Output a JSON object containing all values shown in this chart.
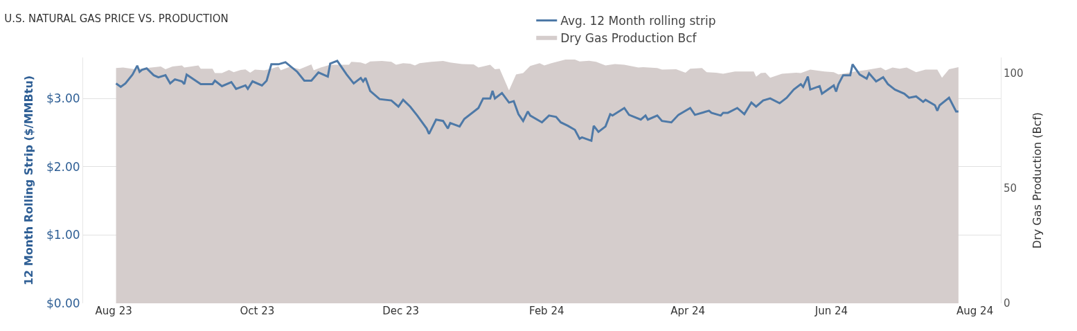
{
  "chart_data": {
    "type": "line",
    "title": "U.S. NATURAL GAS PRICE VS. PRODUCTION",
    "ylabel": "12 Month Rolling Strip ($/MMBtu)",
    "y2label": "Dry Gas Production (Bcf)",
    "xlim": [
      "2023-07-19",
      "2024-08-12"
    ],
    "xticks": [
      {
        "value": "2023-08-01",
        "label": "Aug 23"
      },
      {
        "value": "2023-10-01",
        "label": "Oct 23"
      },
      {
        "value": "2023-12-01",
        "label": "Dec 23"
      },
      {
        "value": "2024-02-01",
        "label": "Feb 24"
      },
      {
        "value": "2024-04-01",
        "label": "Apr 24"
      },
      {
        "value": "2024-06-01",
        "label": "Jun 24"
      },
      {
        "value": "2024-08-01",
        "label": "Aug 24"
      }
    ],
    "ylim": [
      0,
      3.6
    ],
    "yticks": [
      {
        "value": 0,
        "label": "$0.00"
      },
      {
        "value": 1,
        "label": "$1.00"
      },
      {
        "value": 2,
        "label": "$2.00"
      },
      {
        "value": 3,
        "label": "$3.00"
      }
    ],
    "y2lim": [
      0,
      107
    ],
    "y2ticks": [
      0,
      50,
      100
    ],
    "grid": "y",
    "legend": "top",
    "line_style": "solid",
    "series": [
      {
        "name": "Avg. 12 Month rolling strip",
        "color": "#4e79a7",
        "x": [
          "2023-08-02",
          "2023-08-04",
          "2023-08-06",
          "2023-08-09",
          "2023-08-11",
          "2023-08-12",
          "2023-08-13",
          "2023-08-15",
          "2023-08-18",
          "2023-08-20",
          "2023-08-23",
          "2023-08-25",
          "2023-08-27",
          "2023-08-30",
          "2023-08-31",
          "2023-09-01",
          "2023-09-07",
          "2023-09-12",
          "2023-09-13",
          "2023-09-16",
          "2023-09-20",
          "2023-09-22",
          "2023-09-26",
          "2023-09-27",
          "2023-09-29",
          "2023-10-03",
          "2023-10-05",
          "2023-10-07",
          "2023-10-10",
          "2023-10-13",
          "2023-10-18",
          "2023-10-21",
          "2023-10-24",
          "2023-10-27",
          "2023-10-31",
          "2023-11-01",
          "2023-11-04",
          "2023-11-08",
          "2023-11-11",
          "2023-11-14",
          "2023-11-15",
          "2023-11-16",
          "2023-11-18",
          "2023-11-22",
          "2023-11-27",
          "2023-11-30",
          "2023-12-02",
          "2023-12-05",
          "2023-12-08",
          "2023-12-12",
          "2023-12-13",
          "2023-12-16",
          "2023-12-19",
          "2023-12-21",
          "2023-12-22",
          "2023-12-26",
          "2023-12-28",
          "2024-01-03",
          "2024-01-05",
          "2024-01-08",
          "2024-01-09",
          "2024-01-10",
          "2024-01-13",
          "2024-01-16",
          "2024-01-18",
          "2024-01-20",
          "2024-01-22",
          "2024-01-24",
          "2024-01-25",
          "2024-01-30",
          "2024-02-02",
          "2024-02-05",
          "2024-02-07",
          "2024-02-10",
          "2024-02-13",
          "2024-02-15",
          "2024-02-16",
          "2024-02-20",
          "2024-02-21",
          "2024-02-23",
          "2024-02-26",
          "2024-02-28",
          "2024-02-29",
          "2024-03-05",
          "2024-03-07",
          "2024-03-12",
          "2024-03-14",
          "2024-03-15",
          "2024-03-19",
          "2024-03-21",
          "2024-03-25",
          "2024-03-28",
          "2024-04-02",
          "2024-04-04",
          "2024-04-10",
          "2024-04-11",
          "2024-04-15",
          "2024-04-16",
          "2024-04-18",
          "2024-04-22",
          "2024-04-24",
          "2024-04-25",
          "2024-04-28",
          "2024-04-30",
          "2024-05-03",
          "2024-05-06",
          "2024-05-10",
          "2024-05-13",
          "2024-05-16",
          "2024-05-19",
          "2024-05-20",
          "2024-05-22",
          "2024-05-23",
          "2024-05-27",
          "2024-05-28",
          "2024-06-02",
          "2024-06-03",
          "2024-06-04",
          "2024-06-06",
          "2024-06-09",
          "2024-06-10",
          "2024-06-13",
          "2024-06-16",
          "2024-06-17",
          "2024-06-20",
          "2024-06-23",
          "2024-06-25",
          "2024-06-28",
          "2024-07-02",
          "2024-07-04",
          "2024-07-07",
          "2024-07-10",
          "2024-07-11",
          "2024-07-15",
          "2024-07-16",
          "2024-07-17",
          "2024-07-21",
          "2024-07-24",
          "2024-07-25"
        ],
        "values": [
          3.22,
          3.17,
          3.22,
          3.35,
          3.48,
          3.39,
          3.42,
          3.44,
          3.34,
          3.31,
          3.34,
          3.22,
          3.28,
          3.25,
          3.21,
          3.35,
          3.21,
          3.21,
          3.26,
          3.18,
          3.24,
          3.14,
          3.19,
          3.14,
          3.25,
          3.19,
          3.26,
          3.5,
          3.5,
          3.53,
          3.39,
          3.26,
          3.26,
          3.38,
          3.32,
          3.51,
          3.55,
          3.35,
          3.22,
          3.3,
          3.25,
          3.3,
          3.11,
          2.99,
          2.97,
          2.88,
          2.98,
          2.88,
          2.75,
          2.56,
          2.48,
          2.69,
          2.67,
          2.56,
          2.64,
          2.59,
          2.7,
          2.86,
          3.0,
          3.0,
          3.11,
          3.0,
          3.08,
          2.94,
          2.96,
          2.77,
          2.67,
          2.81,
          2.75,
          2.65,
          2.75,
          2.73,
          2.65,
          2.6,
          2.54,
          2.41,
          2.43,
          2.38,
          2.6,
          2.51,
          2.59,
          2.77,
          2.75,
          2.86,
          2.76,
          2.69,
          2.75,
          2.69,
          2.75,
          2.67,
          2.65,
          2.76,
          2.86,
          2.76,
          2.82,
          2.79,
          2.75,
          2.79,
          2.79,
          2.86,
          2.8,
          2.77,
          2.94,
          2.88,
          2.97,
          3.0,
          2.93,
          3.01,
          3.13,
          3.21,
          3.17,
          3.32,
          3.13,
          3.18,
          3.07,
          3.19,
          3.1,
          3.21,
          3.34,
          3.34,
          3.5,
          3.35,
          3.29,
          3.37,
          3.25,
          3.31,
          3.21,
          3.13,
          3.07,
          3.01,
          3.03,
          2.95,
          2.98,
          2.9,
          2.82,
          2.9,
          3.01,
          2.81,
          2.81
        ]
      },
      {
        "name": "Dry Gas Production Bcf",
        "type": "area",
        "axis": "y2",
        "color": "#d5cdcc",
        "x": [
          "2023-08-02",
          "2023-08-05",
          "2023-08-10",
          "2023-08-17",
          "2023-08-21",
          "2023-08-23",
          "2023-08-26",
          "2023-08-30",
          "2023-08-31",
          "2023-09-06",
          "2023-09-07",
          "2023-09-12",
          "2023-09-13",
          "2023-09-16",
          "2023-09-19",
          "2023-09-21",
          "2023-09-24",
          "2023-09-26",
          "2023-09-28",
          "2023-09-30",
          "2023-10-04",
          "2023-10-07",
          "2023-10-10",
          "2023-10-11",
          "2023-10-15",
          "2023-10-19",
          "2023-10-24",
          "2023-10-25",
          "2023-10-28",
          "2023-11-01",
          "2023-11-09",
          "2023-11-10",
          "2023-11-14",
          "2023-11-16",
          "2023-11-18",
          "2023-11-23",
          "2023-11-27",
          "2023-11-29",
          "2023-12-02",
          "2023-12-05",
          "2023-12-07",
          "2023-12-09",
          "2023-12-14",
          "2023-12-19",
          "2023-12-22",
          "2023-12-27",
          "2024-01-01",
          "2024-01-03",
          "2024-01-08",
          "2024-01-10",
          "2024-01-12",
          "2024-01-16",
          "2024-01-19",
          "2024-01-22",
          "2024-01-25",
          "2024-01-29",
          "2024-01-31",
          "2024-02-03",
          "2024-02-09",
          "2024-02-13",
          "2024-02-15",
          "2024-02-19",
          "2024-02-22",
          "2024-02-26",
          "2024-03-01",
          "2024-03-05",
          "2024-03-11",
          "2024-03-13",
          "2024-03-19",
          "2024-03-21",
          "2024-03-27",
          "2024-03-31",
          "2024-04-02",
          "2024-04-07",
          "2024-04-09",
          "2024-04-13",
          "2024-04-16",
          "2024-04-21",
          "2024-04-29",
          "2024-04-30",
          "2024-05-02",
          "2024-05-04",
          "2024-05-06",
          "2024-05-11",
          "2024-05-17",
          "2024-05-19",
          "2024-05-23",
          "2024-05-29",
          "2024-06-02",
          "2024-06-04",
          "2024-06-06",
          "2024-06-11",
          "2024-06-16",
          "2024-06-22",
          "2024-06-24",
          "2024-06-27",
          "2024-06-30",
          "2024-07-03",
          "2024-07-07",
          "2024-07-11",
          "2024-07-16",
          "2024-07-18",
          "2024-07-21",
          "2024-07-25"
        ],
        "values": [
          102.4,
          102.6,
          101.9,
          102.6,
          103.1,
          101.9,
          103.1,
          103.5,
          102.6,
          103.5,
          102.1,
          102.1,
          100.2,
          100.2,
          101.6,
          100.6,
          101.6,
          101.8,
          100.4,
          101.7,
          101.4,
          102.1,
          103.1,
          101.4,
          103.0,
          101.9,
          104.0,
          101.4,
          102.6,
          103.8,
          103.8,
          105.1,
          104.8,
          104.1,
          105.3,
          105.5,
          105.1,
          103.8,
          104.5,
          104.3,
          103.5,
          104.5,
          105.1,
          105.5,
          104.8,
          104.1,
          104.0,
          102.6,
          103.8,
          101.9,
          102.1,
          92.7,
          99.6,
          100.2,
          103.3,
          104.5,
          103.5,
          104.5,
          106.1,
          106.1,
          105.3,
          105.6,
          105.1,
          103.5,
          104.1,
          103.8,
          102.6,
          102.8,
          102.4,
          101.7,
          101.9,
          100.4,
          102.1,
          102.4,
          100.6,
          100.4,
          99.9,
          100.9,
          100.9,
          98.6,
          100.2,
          100.4,
          98.2,
          99.9,
          100.4,
          100.2,
          101.7,
          100.9,
          100.6,
          99.6,
          99.9,
          100.9,
          101.6,
          102.6,
          101.4,
          102.6,
          102.1,
          102.6,
          100.6,
          101.7,
          101.7,
          98.2,
          101.9,
          102.8
        ]
      }
    ]
  }
}
